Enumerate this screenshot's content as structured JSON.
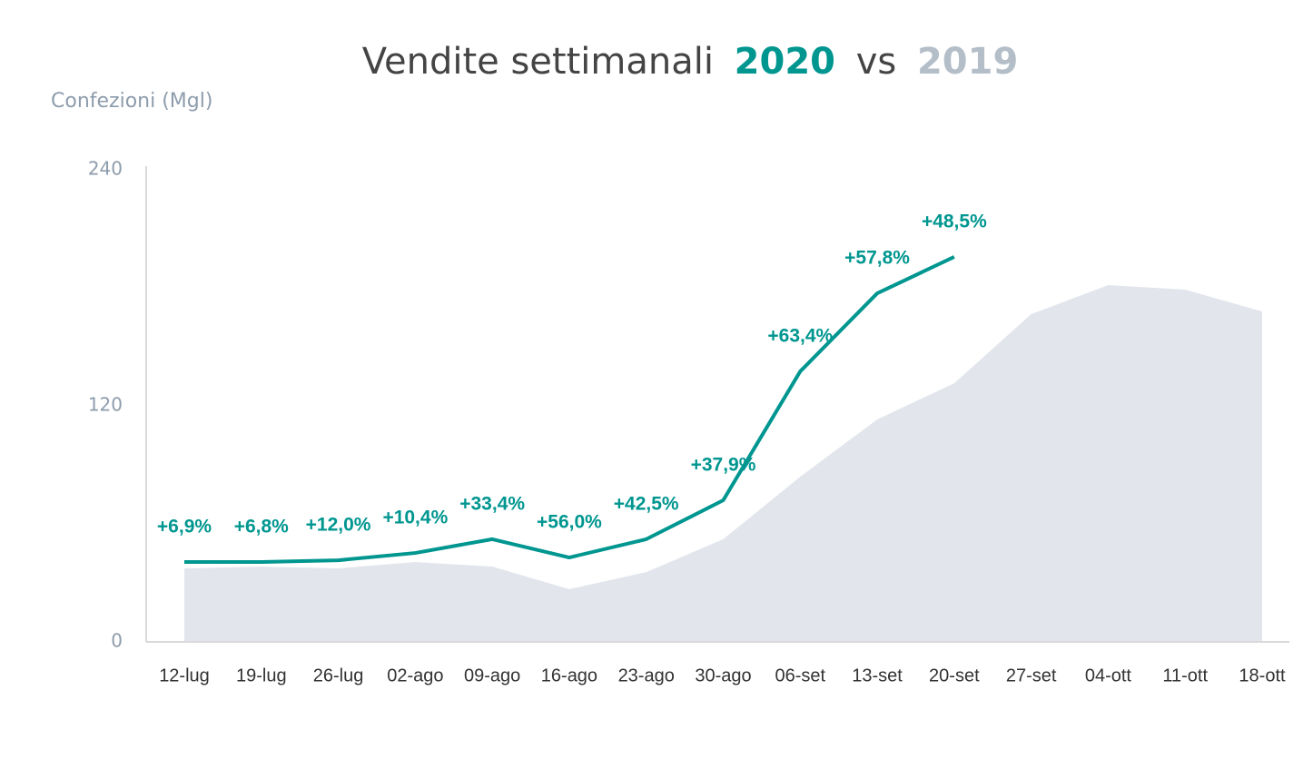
{
  "chart_data": {
    "type": "line",
    "title": {
      "text": "Vendite settimanali",
      "connector": "vs"
    },
    "y_label": "Confezioni (Mgl)",
    "categories": [
      "12-lug",
      "19-lug",
      "26-lug",
      "02-ago",
      "09-ago",
      "16-ago",
      "23-ago",
      "30-ago",
      "06-set",
      "13-set",
      "20-set",
      "27-set",
      "04-ott",
      "11-ott",
      "18-ott"
    ],
    "series": [
      {
        "name": "2019",
        "kind": "area",
        "color": "#e2e6ec",
        "title_color": "#b4bec8",
        "values": [
          37.4,
          38.3,
          37.4,
          40.6,
          38.3,
          26.8,
          35.5,
          52.2,
          84.0,
          113.1,
          131.5,
          166.6,
          181.4,
          179.1,
          168.0
        ]
      },
      {
        "name": "2020",
        "kind": "line",
        "color": "#009690",
        "title_color": "#009690",
        "values": [
          40.6,
          40.6,
          41.5,
          45.2,
          52.2,
          42.9,
          52.2,
          72.0,
          137.5,
          177.2,
          195.7,
          null,
          null,
          null,
          null
        ],
        "annotations": [
          "+6,9%",
          "+6,8%",
          "+12,0%",
          "+10,4%",
          "+33,4%",
          "+56,0%",
          "+42,5%",
          "+37,9%",
          "+63,4%",
          "+57,8%",
          "+48,5%",
          null,
          null,
          null,
          null
        ]
      }
    ],
    "ylim": [
      0,
      240
    ],
    "yticks": [
      0,
      120,
      240
    ],
    "grid": false
  }
}
